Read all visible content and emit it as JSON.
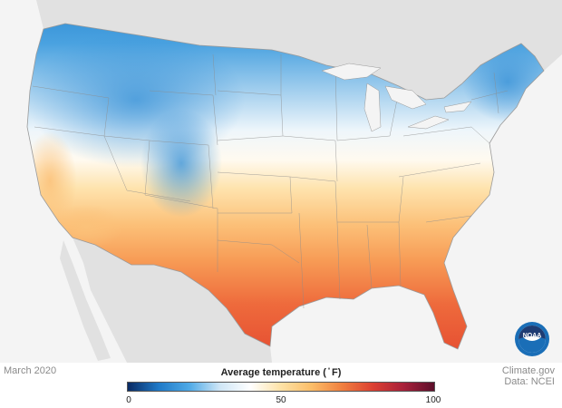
{
  "map": {
    "date": "March 2020",
    "legend": {
      "title": "Average temperature ( ̊ F)",
      "min": 0,
      "mid": 50,
      "max": 100,
      "ticks": [
        "0",
        "50",
        "100"
      ],
      "colors": [
        "#0a2a63",
        "#1f79c7",
        "#4ea9e6",
        "#cfe6f6",
        "#ffffff",
        "#fde2a6",
        "#fbbd68",
        "#f07f3f",
        "#dc4032",
        "#a8203a",
        "#5c0e2a"
      ]
    },
    "credit": {
      "source": "Climate.gov",
      "data": "Data: NCEI"
    },
    "logo_text": "NOAA"
  }
}
